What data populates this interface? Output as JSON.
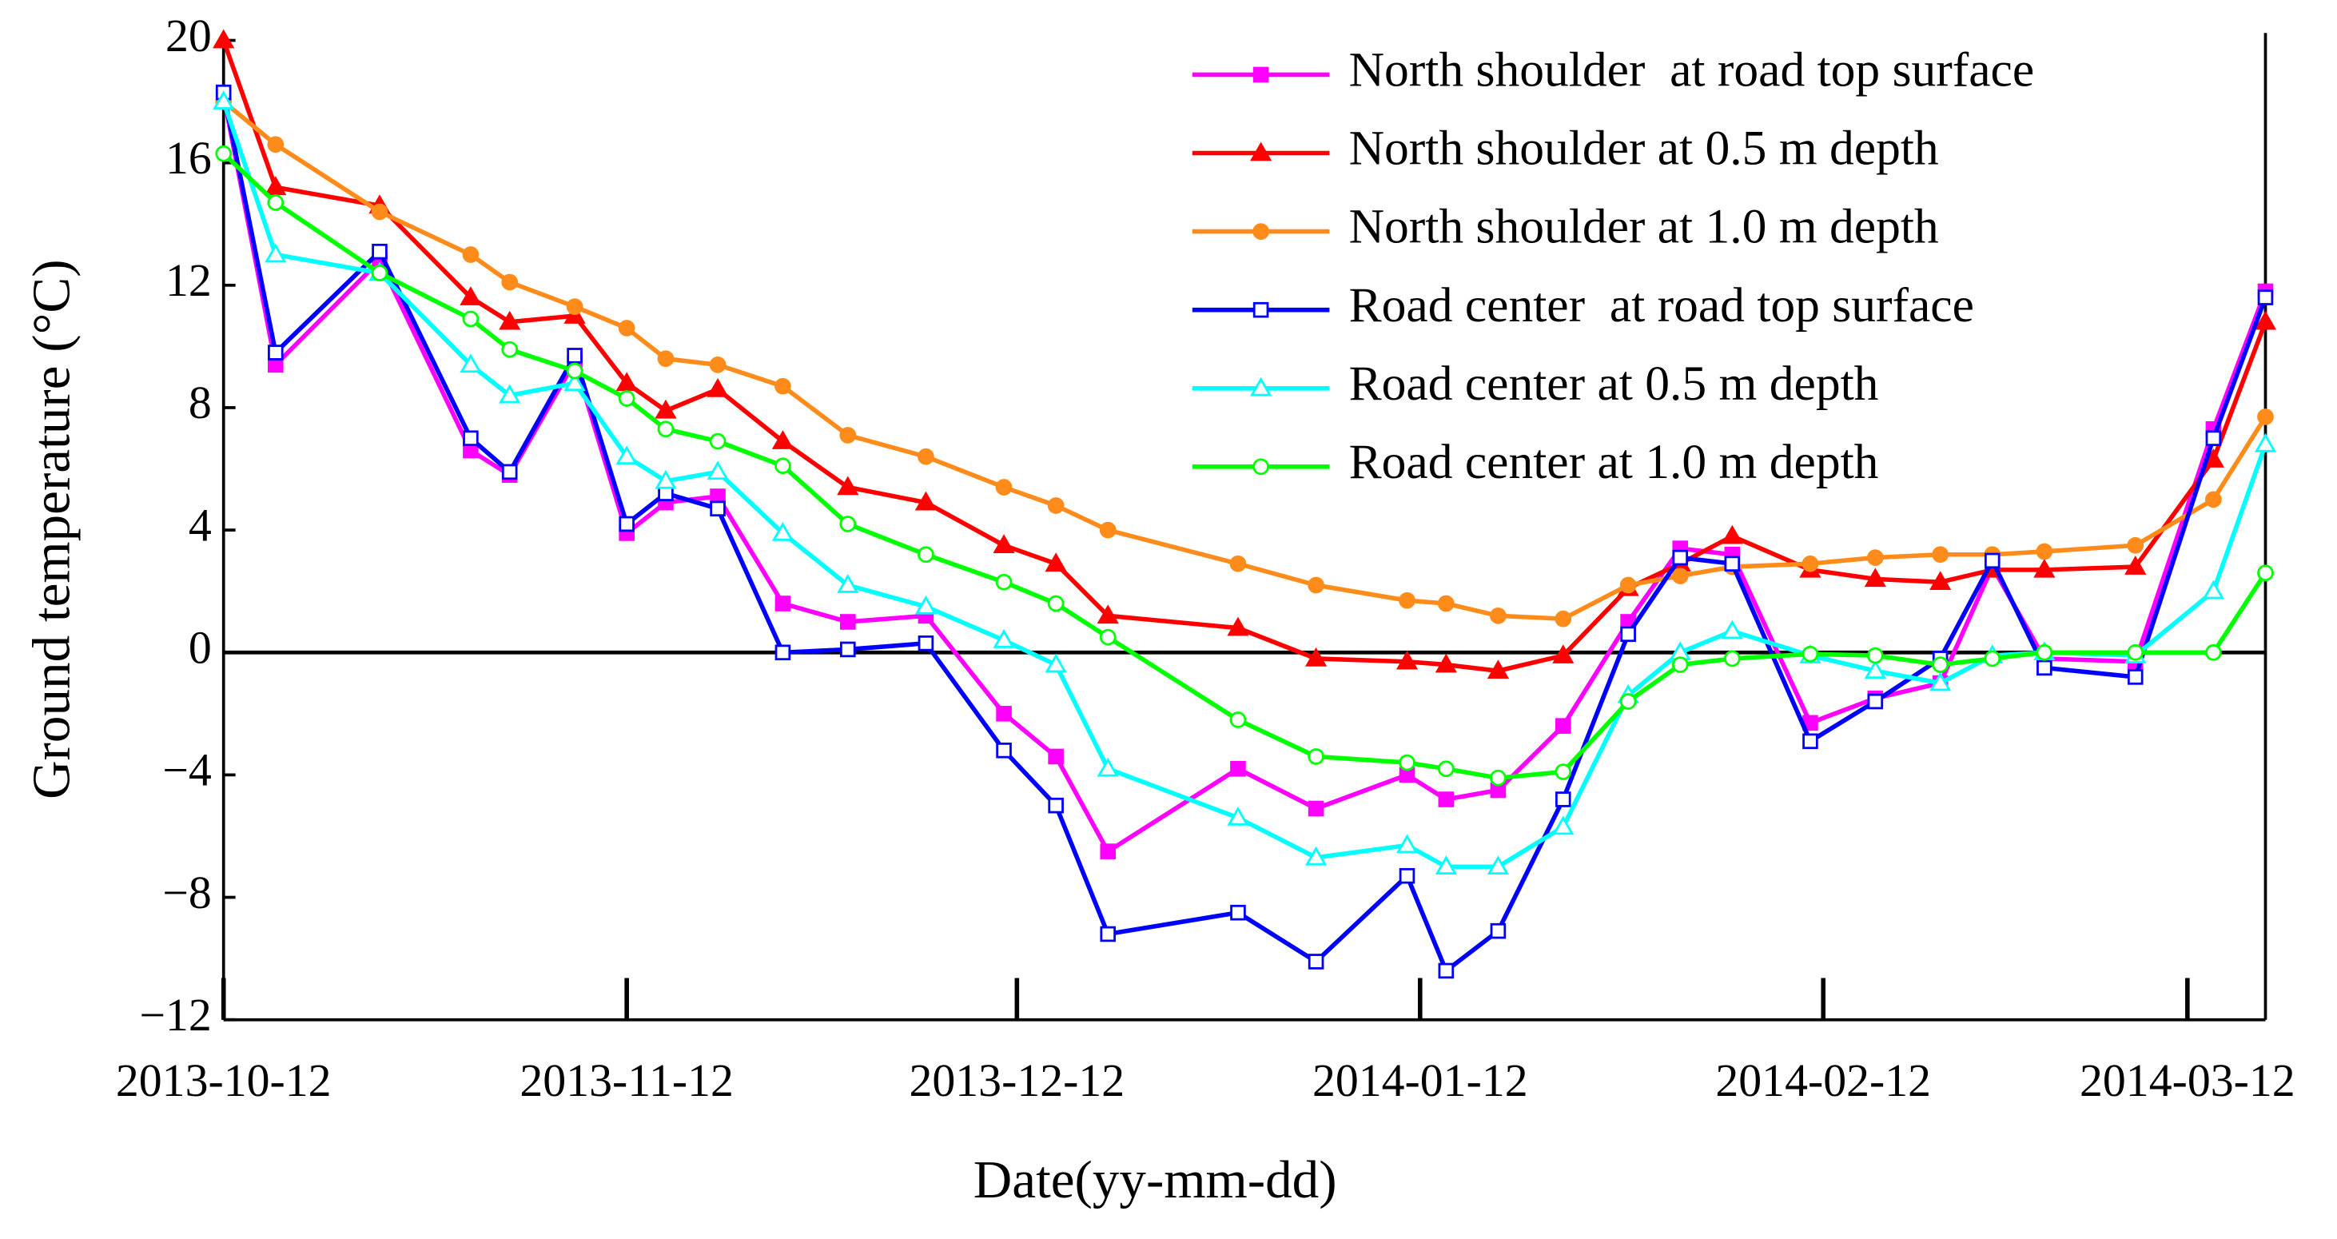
{
  "chart_data": {
    "type": "line",
    "xlabel": "Date(yy-mm-dd)",
    "ylabel": "Ground temperature (°C)",
    "x": [
      "2013-10-12",
      "2013-10-16",
      "2013-10-24",
      "2013-10-31",
      "2013-11-03",
      "2013-11-08",
      "2013-11-12",
      "2013-11-15",
      "2013-11-19",
      "2013-11-24",
      "2013-11-29",
      "2013-12-05",
      "2013-12-11",
      "2013-12-15",
      "2013-12-19",
      "2013-12-29",
      "2014-01-04",
      "2014-01-11",
      "2014-01-14",
      "2014-01-18",
      "2014-01-23",
      "2014-01-28",
      "2014-02-01",
      "2014-02-05",
      "2014-02-11",
      "2014-02-16",
      "2014-02-21",
      "2014-02-25",
      "2014-03-01",
      "2014-03-08",
      "2014-03-14",
      "2014-03-18"
    ],
    "xlim": [
      "2013-10-12",
      "2014-03-18"
    ],
    "xticks": [
      "2013-10-12",
      "2013-11-12",
      "2013-12-12",
      "2014-01-12",
      "2014-02-12",
      "2014-03-12"
    ],
    "ylim": [
      -12,
      20
    ],
    "yticks": [
      {
        "value": -12,
        "label": "−12"
      },
      {
        "value": -8,
        "label": "−8"
      },
      {
        "value": -4,
        "label": "−4"
      },
      0,
      4,
      8,
      12,
      16,
      20
    ],
    "zero_line": true,
    "grid": false,
    "legend": "upper right",
    "series": [
      {
        "name": "North shoulder  at road top surface",
        "color": "#ff00ff",
        "marker": "square",
        "filled": true,
        "values": [
          18.2,
          9.4,
          12.8,
          6.6,
          5.8,
          9.5,
          3.9,
          4.9,
          5.1,
          1.6,
          1.0,
          1.2,
          -2.0,
          -3.4,
          -6.5,
          -3.8,
          -5.1,
          -4.0,
          -4.8,
          -4.5,
          -2.4,
          1.0,
          3.4,
          3.2,
          -2.3,
          -1.5,
          -1.0,
          2.8,
          -0.2,
          -0.3,
          7.3,
          11.8
        ]
      },
      {
        "name": "North shoulder at 0.5 m depth",
        "color": "#ff0000",
        "marker": "triangle",
        "filled": true,
        "values": [
          20,
          15.2,
          14.6,
          11.6,
          10.8,
          11.0,
          8.8,
          7.9,
          8.6,
          6.9,
          5.4,
          4.9,
          3.5,
          2.9,
          1.2,
          0.8,
          -0.2,
          -0.3,
          -0.4,
          -0.6,
          -0.1,
          2.1,
          2.9,
          3.8,
          2.7,
          2.4,
          2.3,
          2.7,
          2.7,
          2.8,
          6.3,
          10.8
        ]
      },
      {
        "name": "North shoulder at 1.0 m depth",
        "color": "#ff8c1a",
        "marker": "circle",
        "filled": true,
        "values": [
          18,
          16.6,
          14.4,
          13.0,
          12.1,
          11.3,
          10.6,
          9.6,
          9.4,
          8.7,
          7.1,
          6.4,
          5.4,
          4.8,
          4.0,
          2.9,
          2.2,
          1.7,
          1.6,
          1.2,
          1.1,
          2.2,
          2.5,
          2.8,
          2.9,
          3.1,
          3.2,
          3.2,
          3.3,
          3.5,
          5.0,
          7.7
        ]
      },
      {
        "name": "Road center  at road top surface",
        "color": "#0000ff",
        "marker": "square",
        "filled": false,
        "values": [
          18.3,
          9.8,
          13.1,
          7.0,
          5.9,
          9.7,
          4.2,
          5.2,
          4.7,
          0,
          0.1,
          0.3,
          -3.2,
          -5.0,
          -9.2,
          -8.5,
          -10.1,
          -7.3,
          -10.4,
          -9.1,
          -4.8,
          0.6,
          3.1,
          2.9,
          -2.9,
          -1.6,
          -0.2,
          3.0,
          -0.5,
          -0.8,
          7.0,
          11.6
        ]
      },
      {
        "name": "Road center at 0.5 m depth",
        "color": "#00ffff",
        "marker": "triangle",
        "filled": false,
        "values": [
          18,
          13.0,
          12.4,
          9.4,
          8.4,
          8.8,
          6.4,
          5.6,
          5.9,
          3.9,
          2.2,
          1.5,
          0.4,
          -0.4,
          -3.8,
          -5.4,
          -6.7,
          -6.3,
          -7.0,
          -7.0,
          -5.7,
          -1.4,
          0,
          0.7,
          -0.1,
          -0.6,
          -1.0,
          -0.1,
          0,
          -0.1,
          2.0,
          6.8
        ]
      },
      {
        "name": "Road center at 1.0 m depth",
        "color": "#00ff00",
        "marker": "circle",
        "filled": false,
        "values": [
          16.3,
          14.7,
          12.4,
          10.9,
          9.9,
          9.2,
          8.3,
          7.3,
          6.9,
          6.1,
          4.2,
          3.2,
          2.3,
          1.6,
          0.5,
          -2.2,
          -3.4,
          -3.6,
          -3.8,
          -4.1,
          -3.9,
          -1.6,
          -0.4,
          -0.2,
          -0.05,
          -0.1,
          -0.4,
          -0.2,
          0,
          0,
          0,
          2.6
        ]
      }
    ]
  }
}
